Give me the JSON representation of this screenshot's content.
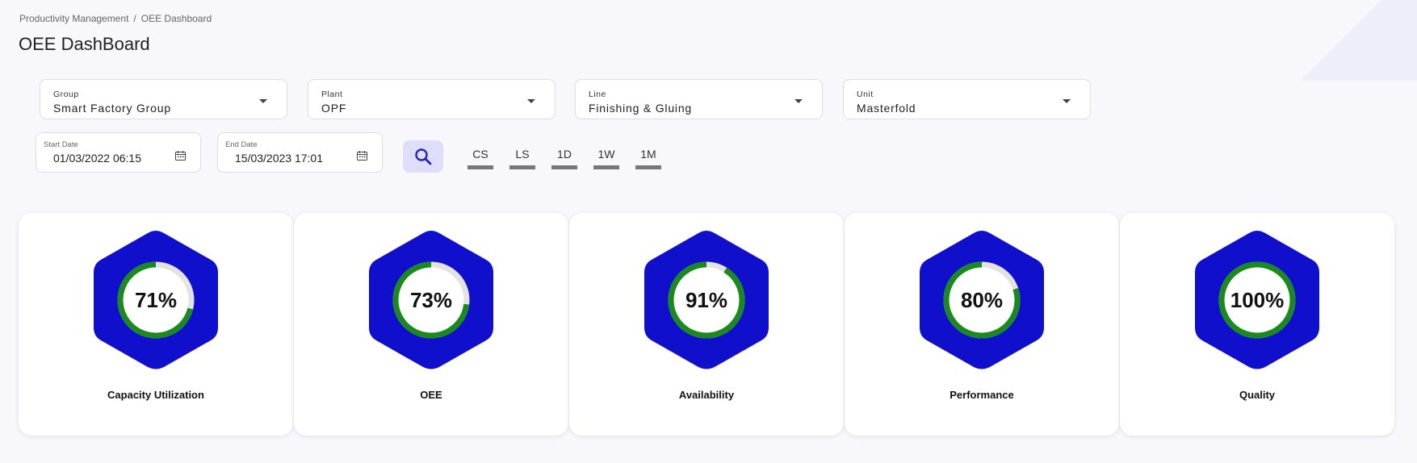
{
  "breadcrumb": {
    "items": [
      "Productivity Management",
      "OEE Dashboard"
    ],
    "separator": "/"
  },
  "page_title": "OEE DashBoard",
  "filters": {
    "group": {
      "label": "Group",
      "value": "Smart Factory Group"
    },
    "plant": {
      "label": "Plant",
      "value": "OPF"
    },
    "line": {
      "label": "Line",
      "value": "Finishing & Gluing"
    },
    "unit": {
      "label": "Unit",
      "value": "Masterfold"
    }
  },
  "dates": {
    "start": {
      "label": "Start Date",
      "value": "01/03/2022 06:15"
    },
    "end": {
      "label": "End Date",
      "value": "15/03/2023 17:01"
    }
  },
  "range_buttons": [
    "CS",
    "LS",
    "1D",
    "1W",
    "1M"
  ],
  "kpis": [
    {
      "label": "Capacity Utilization",
      "value": 71,
      "display": "71%"
    },
    {
      "label": "OEE",
      "value": 73,
      "display": "73%"
    },
    {
      "label": "Availability",
      "value": 91,
      "display": "91%"
    },
    {
      "label": "Performance",
      "value": 80,
      "display": "80%"
    },
    {
      "label": "Quality",
      "value": 100,
      "display": "100%"
    }
  ],
  "colors": {
    "hexagon": "#1010cc",
    "ring_progress": "#1a8a1f",
    "ring_track": "#e3e3e3",
    "search_button_bg": "#dedefa",
    "search_icon": "#2323c8"
  },
  "icons": {
    "search": "search-icon",
    "calendar": "calendar-icon",
    "dropdown": "chevron-down-icon"
  }
}
